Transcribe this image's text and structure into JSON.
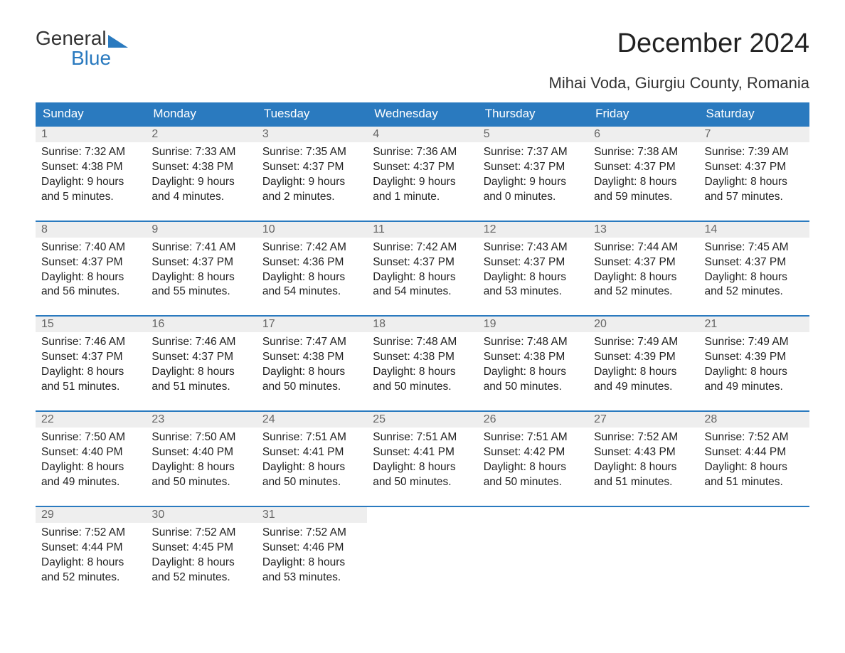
{
  "logo": {
    "line1": "General",
    "line2": "Blue"
  },
  "title": "December 2024",
  "subtitle": "Mihai Voda, Giurgiu County, Romania",
  "colors": {
    "header_bg": "#2a7abf",
    "header_text": "#ffffff",
    "daynum_bg": "#eeeeee",
    "daynum_text": "#666666",
    "row_border": "#2a7abf",
    "logo_blue": "#2a7abf",
    "body_text": "#222222",
    "page_bg": "#ffffff"
  },
  "columns": [
    "Sunday",
    "Monday",
    "Tuesday",
    "Wednesday",
    "Thursday",
    "Friday",
    "Saturday"
  ],
  "weeks": [
    [
      {
        "n": "1",
        "sr": "Sunrise: 7:32 AM",
        "ss": "Sunset: 4:38 PM",
        "d1": "Daylight: 9 hours",
        "d2": "and 5 minutes."
      },
      {
        "n": "2",
        "sr": "Sunrise: 7:33 AM",
        "ss": "Sunset: 4:38 PM",
        "d1": "Daylight: 9 hours",
        "d2": "and 4 minutes."
      },
      {
        "n": "3",
        "sr": "Sunrise: 7:35 AM",
        "ss": "Sunset: 4:37 PM",
        "d1": "Daylight: 9 hours",
        "d2": "and 2 minutes."
      },
      {
        "n": "4",
        "sr": "Sunrise: 7:36 AM",
        "ss": "Sunset: 4:37 PM",
        "d1": "Daylight: 9 hours",
        "d2": "and 1 minute."
      },
      {
        "n": "5",
        "sr": "Sunrise: 7:37 AM",
        "ss": "Sunset: 4:37 PM",
        "d1": "Daylight: 9 hours",
        "d2": "and 0 minutes."
      },
      {
        "n": "6",
        "sr": "Sunrise: 7:38 AM",
        "ss": "Sunset: 4:37 PM",
        "d1": "Daylight: 8 hours",
        "d2": "and 59 minutes."
      },
      {
        "n": "7",
        "sr": "Sunrise: 7:39 AM",
        "ss": "Sunset: 4:37 PM",
        "d1": "Daylight: 8 hours",
        "d2": "and 57 minutes."
      }
    ],
    [
      {
        "n": "8",
        "sr": "Sunrise: 7:40 AM",
        "ss": "Sunset: 4:37 PM",
        "d1": "Daylight: 8 hours",
        "d2": "and 56 minutes."
      },
      {
        "n": "9",
        "sr": "Sunrise: 7:41 AM",
        "ss": "Sunset: 4:37 PM",
        "d1": "Daylight: 8 hours",
        "d2": "and 55 minutes."
      },
      {
        "n": "10",
        "sr": "Sunrise: 7:42 AM",
        "ss": "Sunset: 4:36 PM",
        "d1": "Daylight: 8 hours",
        "d2": "and 54 minutes."
      },
      {
        "n": "11",
        "sr": "Sunrise: 7:42 AM",
        "ss": "Sunset: 4:37 PM",
        "d1": "Daylight: 8 hours",
        "d2": "and 54 minutes."
      },
      {
        "n": "12",
        "sr": "Sunrise: 7:43 AM",
        "ss": "Sunset: 4:37 PM",
        "d1": "Daylight: 8 hours",
        "d2": "and 53 minutes."
      },
      {
        "n": "13",
        "sr": "Sunrise: 7:44 AM",
        "ss": "Sunset: 4:37 PM",
        "d1": "Daylight: 8 hours",
        "d2": "and 52 minutes."
      },
      {
        "n": "14",
        "sr": "Sunrise: 7:45 AM",
        "ss": "Sunset: 4:37 PM",
        "d1": "Daylight: 8 hours",
        "d2": "and 52 minutes."
      }
    ],
    [
      {
        "n": "15",
        "sr": "Sunrise: 7:46 AM",
        "ss": "Sunset: 4:37 PM",
        "d1": "Daylight: 8 hours",
        "d2": "and 51 minutes."
      },
      {
        "n": "16",
        "sr": "Sunrise: 7:46 AM",
        "ss": "Sunset: 4:37 PM",
        "d1": "Daylight: 8 hours",
        "d2": "and 51 minutes."
      },
      {
        "n": "17",
        "sr": "Sunrise: 7:47 AM",
        "ss": "Sunset: 4:38 PM",
        "d1": "Daylight: 8 hours",
        "d2": "and 50 minutes."
      },
      {
        "n": "18",
        "sr": "Sunrise: 7:48 AM",
        "ss": "Sunset: 4:38 PM",
        "d1": "Daylight: 8 hours",
        "d2": "and 50 minutes."
      },
      {
        "n": "19",
        "sr": "Sunrise: 7:48 AM",
        "ss": "Sunset: 4:38 PM",
        "d1": "Daylight: 8 hours",
        "d2": "and 50 minutes."
      },
      {
        "n": "20",
        "sr": "Sunrise: 7:49 AM",
        "ss": "Sunset: 4:39 PM",
        "d1": "Daylight: 8 hours",
        "d2": "and 49 minutes."
      },
      {
        "n": "21",
        "sr": "Sunrise: 7:49 AM",
        "ss": "Sunset: 4:39 PM",
        "d1": "Daylight: 8 hours",
        "d2": "and 49 minutes."
      }
    ],
    [
      {
        "n": "22",
        "sr": "Sunrise: 7:50 AM",
        "ss": "Sunset: 4:40 PM",
        "d1": "Daylight: 8 hours",
        "d2": "and 49 minutes."
      },
      {
        "n": "23",
        "sr": "Sunrise: 7:50 AM",
        "ss": "Sunset: 4:40 PM",
        "d1": "Daylight: 8 hours",
        "d2": "and 50 minutes."
      },
      {
        "n": "24",
        "sr": "Sunrise: 7:51 AM",
        "ss": "Sunset: 4:41 PM",
        "d1": "Daylight: 8 hours",
        "d2": "and 50 minutes."
      },
      {
        "n": "25",
        "sr": "Sunrise: 7:51 AM",
        "ss": "Sunset: 4:41 PM",
        "d1": "Daylight: 8 hours",
        "d2": "and 50 minutes."
      },
      {
        "n": "26",
        "sr": "Sunrise: 7:51 AM",
        "ss": "Sunset: 4:42 PM",
        "d1": "Daylight: 8 hours",
        "d2": "and 50 minutes."
      },
      {
        "n": "27",
        "sr": "Sunrise: 7:52 AM",
        "ss": "Sunset: 4:43 PM",
        "d1": "Daylight: 8 hours",
        "d2": "and 51 minutes."
      },
      {
        "n": "28",
        "sr": "Sunrise: 7:52 AM",
        "ss": "Sunset: 4:44 PM",
        "d1": "Daylight: 8 hours",
        "d2": "and 51 minutes."
      }
    ],
    [
      {
        "n": "29",
        "sr": "Sunrise: 7:52 AM",
        "ss": "Sunset: 4:44 PM",
        "d1": "Daylight: 8 hours",
        "d2": "and 52 minutes."
      },
      {
        "n": "30",
        "sr": "Sunrise: 7:52 AM",
        "ss": "Sunset: 4:45 PM",
        "d1": "Daylight: 8 hours",
        "d2": "and 52 minutes."
      },
      {
        "n": "31",
        "sr": "Sunrise: 7:52 AM",
        "ss": "Sunset: 4:46 PM",
        "d1": "Daylight: 8 hours",
        "d2": "and 53 minutes."
      },
      {
        "empty": true
      },
      {
        "empty": true
      },
      {
        "empty": true
      },
      {
        "empty": true
      }
    ]
  ]
}
